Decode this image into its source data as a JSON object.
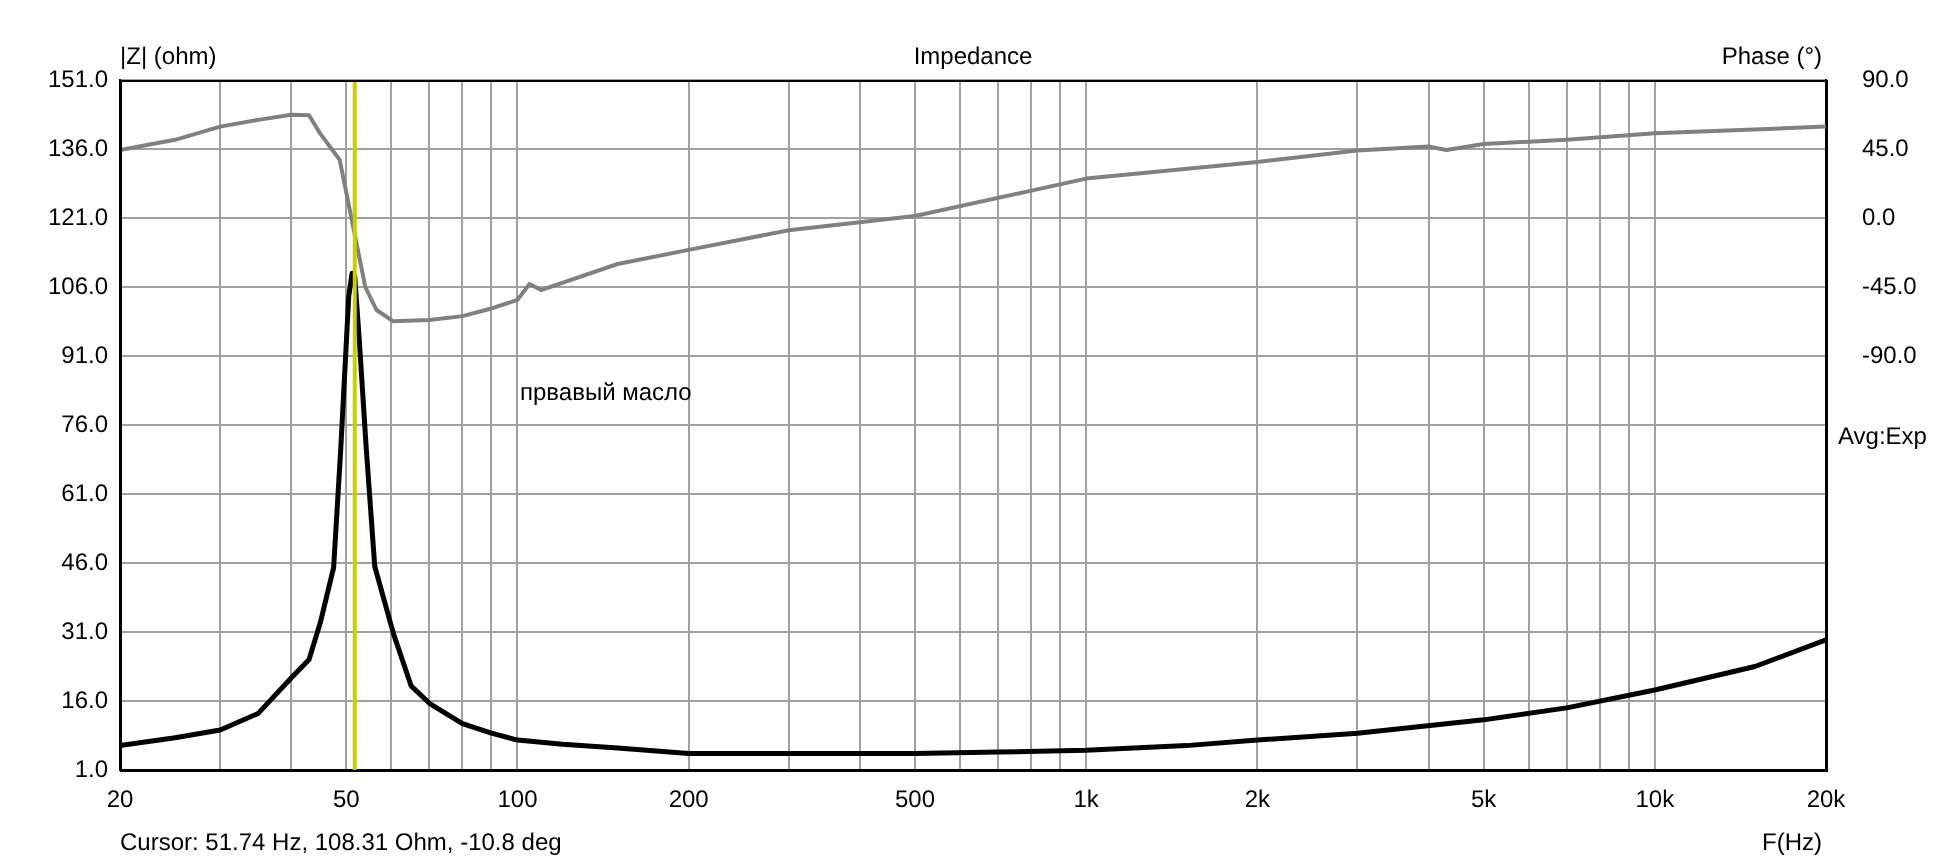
{
  "chart_data": {
    "type": "line",
    "title": "Impedance",
    "xlabel": "F(Hz)",
    "ylabel": "|Z| (ohm)",
    "y2label": "Phase (°)",
    "annotations": [
      "Cursor: 51.74 Hz, 108.31 Ohm, -10.8 deg",
      "првавый масло",
      "Avg:Exp"
    ],
    "log": "x",
    "grid": true,
    "legend": false,
    "marker": "none",
    "line_style": "solid",
    "xlim": [
      20,
      20000
    ],
    "xticks": [
      20,
      {
        "value": 30,
        "label": null
      },
      {
        "value": 40,
        "label": null
      },
      50,
      {
        "value": 60,
        "label": null
      },
      {
        "value": 70,
        "label": null
      },
      {
        "value": 80,
        "label": null
      },
      {
        "value": 90,
        "label": null
      },
      100,
      200,
      {
        "value": 300,
        "label": null
      },
      {
        "value": 400,
        "label": null
      },
      500,
      {
        "value": 600,
        "label": null
      },
      {
        "value": 700,
        "label": null
      },
      {
        "value": 800,
        "label": null
      },
      {
        "value": 900,
        "label": null
      },
      {
        "value": 1000,
        "label": "1k"
      },
      {
        "value": 2000,
        "label": "2k"
      },
      {
        "value": 3000,
        "label": null
      },
      {
        "value": 4000,
        "label": null
      },
      {
        "value": 5000,
        "label": "5k"
      },
      {
        "value": 6000,
        "label": null
      },
      {
        "value": 7000,
        "label": null
      },
      {
        "value": 8000,
        "label": null
      },
      {
        "value": 9000,
        "label": null
      },
      {
        "value": 10000,
        "label": "10k"
      },
      {
        "value": 20000,
        "label": "20k"
      }
    ],
    "ylim": [
      1,
      151
    ],
    "yticks": [
      {
        "value": 1,
        "label": "1.0"
      },
      {
        "value": 16,
        "label": "16.0"
      },
      {
        "value": 31,
        "label": "31.0"
      },
      {
        "value": 46,
        "label": "46.0"
      },
      {
        "value": 61,
        "label": "61.0"
      },
      {
        "value": 76,
        "label": "76.0"
      },
      {
        "value": 91,
        "label": "91.0"
      },
      {
        "value": 106,
        "label": "106.0"
      },
      {
        "value": 121,
        "label": "121.0"
      },
      {
        "value": 136,
        "label": "136.0"
      },
      {
        "value": 151,
        "label": "151.0"
      }
    ],
    "y2lim": [
      -360,
      90
    ],
    "y2ticks": [
      {
        "value": 90,
        "label": "90.0"
      },
      {
        "value": 45,
        "label": "45.0"
      },
      {
        "value": 0,
        "label": "0.0"
      },
      {
        "value": -45,
        "label": "-45.0"
      },
      {
        "value": -90,
        "label": "-90.0"
      }
    ],
    "ref_lines": [
      {
        "axis": "x",
        "value": 51.74,
        "color": "#cccc00"
      }
    ],
    "series": [
      {
        "color": "#000000",
        "x": [
          20,
          25,
          30,
          35,
          40,
          43,
          45,
          47.5,
          48.9,
          50.5,
          51.2,
          51.74,
          52.7,
          54.2,
          56.1,
          60.5,
          65,
          70,
          80,
          90,
          100,
          120,
          150,
          200,
          300,
          500,
          700,
          1000,
          1500,
          2000,
          3000,
          5000,
          7000,
          10000,
          15000,
          20000
        ],
        "values": [
          6.3,
          8,
          9.7,
          13.3,
          21,
          25,
          33,
          45,
          71,
          104,
          109,
          108.31,
          94.5,
          71,
          45.3,
          30.7,
          19.3,
          15.5,
          11.1,
          9,
          7.5,
          6.6,
          5.8,
          4.6,
          4.6,
          4.6,
          4.9,
          5.3,
          6.3,
          7.5,
          9,
          11.9,
          14.5,
          18.4,
          23.5,
          29.3
        ]
      },
      {
        "color": "#808080",
        "axis": "y2",
        "x": [
          20,
          25,
          30,
          35,
          40,
          43,
          45,
          48.7,
          51.74,
          54,
          56.5,
          60.5,
          70,
          80,
          90,
          100,
          105,
          110,
          150,
          200,
          300,
          500,
          1000,
          2000,
          3000,
          4000,
          4300,
          5000,
          7000,
          10000,
          20000
        ],
        "values": [
          44.4,
          51,
          59.6,
          64,
          67.4,
          67,
          55,
          37.8,
          -10.8,
          -45,
          -60,
          -67.4,
          -66.5,
          -64,
          -59,
          -53.4,
          -43,
          -47,
          -30,
          -20.8,
          -8,
          1.3,
          25.7,
          36.5,
          44,
          46.6,
          44.4,
          48.3,
          51,
          55.2,
          59.6
        ]
      }
    ]
  }
}
